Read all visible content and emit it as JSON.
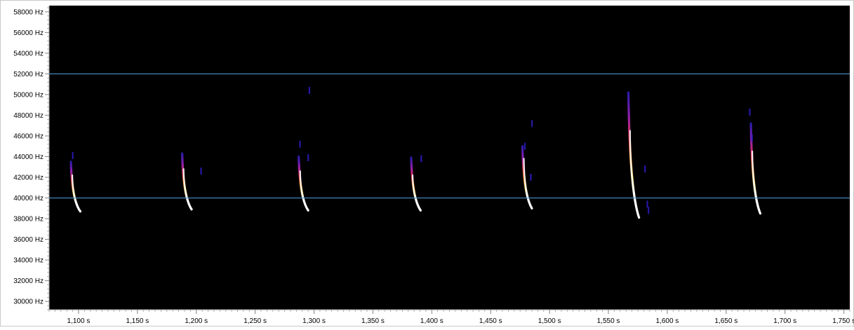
{
  "chart_data": {
    "type": "spectrogram",
    "title": "",
    "xlabel": "",
    "ylabel": "",
    "x_unit": "s",
    "y_unit": "Hz",
    "xlim": [
      1.075,
      1.755
    ],
    "ylim": [
      29200,
      58600
    ],
    "x_ticks": [
      {
        "value": 1.1,
        "label": "1,100 s"
      },
      {
        "value": 1.15,
        "label": "1,150 s"
      },
      {
        "value": 1.2,
        "label": "1,200 s"
      },
      {
        "value": 1.25,
        "label": "1,250 s"
      },
      {
        "value": 1.3,
        "label": "1,300 s"
      },
      {
        "value": 1.35,
        "label": "1,350 s"
      },
      {
        "value": 1.4,
        "label": "1,400 s"
      },
      {
        "value": 1.45,
        "label": "1,450 s"
      },
      {
        "value": 1.5,
        "label": "1,500 s"
      },
      {
        "value": 1.55,
        "label": "1,550 s"
      },
      {
        "value": 1.6,
        "label": "1,600 s"
      },
      {
        "value": 1.65,
        "label": "1,650 s"
      },
      {
        "value": 1.7,
        "label": "1,700 s"
      },
      {
        "value": 1.75,
        "label": "1,750 s"
      }
    ],
    "y_ticks": [
      {
        "value": 30000,
        "label": "30000 Hz"
      },
      {
        "value": 32000,
        "label": "32000 Hz"
      },
      {
        "value": 34000,
        "label": "34000 Hz"
      },
      {
        "value": 36000,
        "label": "36000 Hz"
      },
      {
        "value": 38000,
        "label": "38000 Hz"
      },
      {
        "value": 40000,
        "label": "40000 Hz"
      },
      {
        "value": 42000,
        "label": "42000 Hz"
      },
      {
        "value": 44000,
        "label": "44000 Hz"
      },
      {
        "value": 46000,
        "label": "46000 Hz"
      },
      {
        "value": 48000,
        "label": "48000 Hz"
      },
      {
        "value": 50000,
        "label": "50000 Hz"
      },
      {
        "value": 52000,
        "label": "52000 Hz"
      },
      {
        "value": 54000,
        "label": "54000 Hz"
      },
      {
        "value": 56000,
        "label": "56000 Hz"
      },
      {
        "value": 58000,
        "label": "58000 Hz"
      }
    ],
    "reference_lines": [
      52000,
      40000
    ],
    "calls": [
      {
        "t_start": 1.0935,
        "t_end": 1.1015,
        "f_start": 43500,
        "f_end": 38700,
        "f_bright": 42200
      },
      {
        "t_start": 1.188,
        "t_end": 1.196,
        "f_start": 44300,
        "f_end": 38900,
        "f_bright": 42800
      },
      {
        "t_start": 1.287,
        "t_end": 1.295,
        "f_start": 44000,
        "f_end": 38800,
        "f_bright": 42600
      },
      {
        "t_start": 1.3825,
        "t_end": 1.3905,
        "f_start": 43900,
        "f_end": 38800,
        "f_bright": 42200
      },
      {
        "t_start": 1.477,
        "t_end": 1.485,
        "f_start": 45000,
        "f_end": 39000,
        "f_bright": 43800
      },
      {
        "t_start": 1.567,
        "t_end": 1.576,
        "f_start": 50200,
        "f_end": 38100,
        "f_bright": 46500
      },
      {
        "t_start": 1.671,
        "t_end": 1.679,
        "f_start": 47200,
        "f_end": 38500,
        "f_bright": 44500
      }
    ],
    "noise_specks": [
      {
        "t": 1.095,
        "f": 44100
      },
      {
        "t": 1.204,
        "f": 42600
      },
      {
        "t": 1.288,
        "f": 45200
      },
      {
        "t": 1.295,
        "f": 43900
      },
      {
        "t": 1.296,
        "f": 50400
      },
      {
        "t": 1.391,
        "f": 43800
      },
      {
        "t": 1.479,
        "f": 45000
      },
      {
        "t": 1.484,
        "f": 42000
      },
      {
        "t": 1.485,
        "f": 47200
      },
      {
        "t": 1.581,
        "f": 42800
      },
      {
        "t": 1.583,
        "f": 39400
      },
      {
        "t": 1.584,
        "f": 38800
      },
      {
        "t": 1.67,
        "f": 48300
      },
      {
        "t": 1.672,
        "f": 45800
      }
    ],
    "grid": false,
    "legend": "none"
  }
}
